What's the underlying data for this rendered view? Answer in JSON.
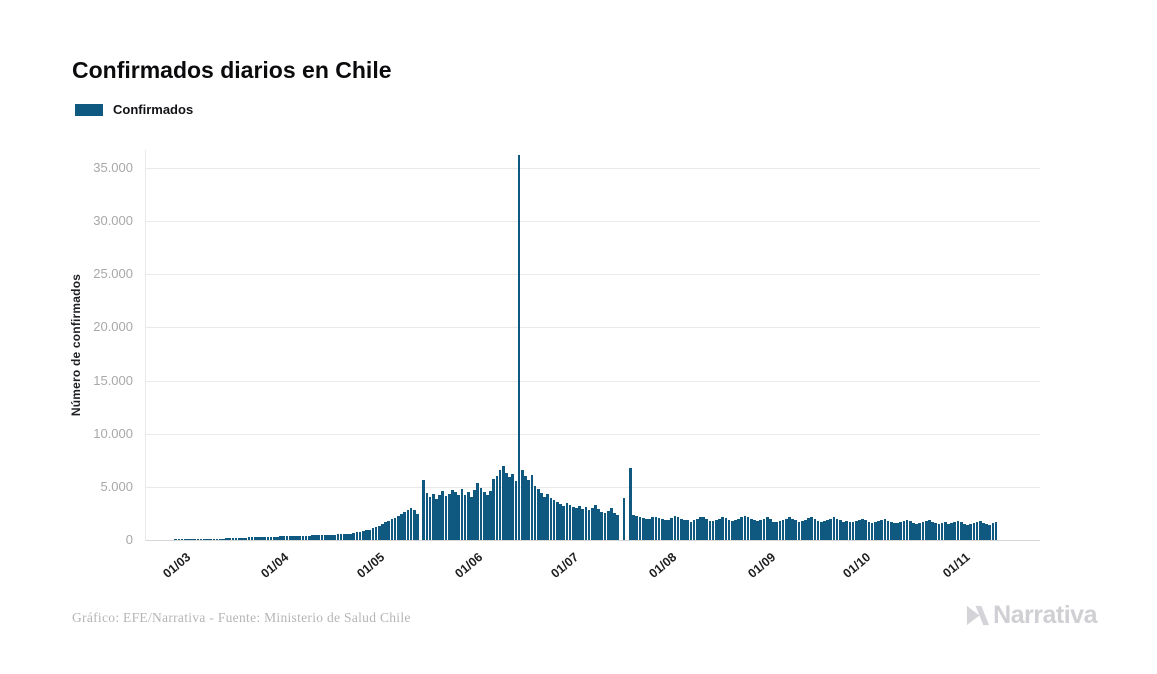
{
  "header": {
    "title": "Confirmados diarios en Chile"
  },
  "legend": {
    "position": "top-left",
    "items": [
      {
        "label": "Confirmados",
        "color": "#0f587f"
      }
    ]
  },
  "chart_data": {
    "type": "bar",
    "title": "Confirmados diarios en Chile",
    "xlabel": "",
    "ylabel": "Número de confirmados",
    "series_name": "Confirmados",
    "bar_color": "#0f587f",
    "grid": "horizontal-only",
    "ylim": [
      0,
      37000
    ],
    "y_ticks": [
      "0",
      "5.000",
      "10.000",
      "15.000",
      "20.000",
      "25.000",
      "30.000",
      "35.000"
    ],
    "y_tick_values": [
      0,
      5000,
      10000,
      15000,
      20000,
      25000,
      30000,
      35000
    ],
    "x_ticks": [
      {
        "label": "01/03",
        "day": 0
      },
      {
        "label": "01/04",
        "day": 31
      },
      {
        "label": "01/05",
        "day": 61
      },
      {
        "label": "01/06",
        "day": 92
      },
      {
        "label": "01/07",
        "day": 122
      },
      {
        "label": "01/08",
        "day": 153
      },
      {
        "label": "01/09",
        "day": 184
      },
      {
        "label": "01/10",
        "day": 214
      },
      {
        "label": "01/11",
        "day": 245
      }
    ],
    "x_start_label": "01/03",
    "values": [
      0,
      0,
      1,
      3,
      4,
      5,
      10,
      12,
      14,
      18,
      30,
      43,
      56,
      75,
      92,
      105,
      118,
      132,
      145,
      160,
      176,
      190,
      205,
      220,
      232,
      240,
      252,
      262,
      272,
      282,
      290,
      300,
      310,
      318,
      312,
      330,
      340,
      336,
      346,
      360,
      375,
      390,
      400,
      410,
      420,
      430,
      426,
      445,
      460,
      475,
      482,
      495,
      510,
      522,
      540,
      560,
      580,
      605,
      650,
      710,
      780,
      840,
      905,
      980,
      1100,
      1230,
      1350,
      1500,
      1650,
      1800,
      1950,
      2100,
      2260,
      2400,
      2600,
      2800,
      3000,
      2820,
      2420,
      0,
      5650,
      4420,
      4000,
      4320,
      3900,
      4220,
      4600,
      4120,
      4320,
      4700,
      4520,
      4220,
      4800,
      4220,
      4520,
      4000,
      4720,
      5320,
      4920,
      4520,
      4220,
      4620,
      5700,
      6000,
      6620,
      6920,
      6320,
      5920,
      6220,
      5520,
      36200,
      6620,
      6020,
      5620,
      6120,
      5120,
      4820,
      4420,
      4020,
      4320,
      3920,
      3720,
      3620,
      3420,
      3220,
      3520,
      3320,
      3120,
      3020,
      3220,
      2920,
      3120,
      2820,
      3020,
      3320,
      2920,
      2620,
      2520,
      2720,
      3020,
      2520,
      2320,
      0,
      3980,
      0,
      6810,
      2350,
      2250,
      2150,
      2080,
      1980,
      2020,
      2120,
      2140,
      2040,
      1960,
      1840,
      1920,
      2060,
      2220,
      2120,
      2020,
      1920,
      1860,
      1720,
      1920,
      2020,
      2160,
      2120,
      1960,
      1820,
      1760,
      1920,
      2020,
      2120,
      2060,
      1920,
      1820,
      1860,
      1960,
      2120,
      2220,
      2160,
      2020,
      1860,
      1820,
      1920,
      2020,
      2120,
      1960,
      1720,
      1660,
      1820,
      1920,
      2020,
      2120,
      1960,
      1860,
      1720,
      1760,
      1920,
      2060,
      2120,
      1960,
      1820,
      1720,
      1760,
      1860,
      1960,
      2120,
      2020,
      1860,
      1720,
      1760,
      1660,
      1720,
      1820,
      1920,
      2020,
      1860,
      1720,
      1620,
      1660,
      1760,
      1860,
      1960,
      1820,
      1720,
      1560,
      1620,
      1720,
      1820,
      1920,
      1760,
      1620,
      1520,
      1560,
      1660,
      1760,
      1860,
      1720,
      1620,
      1520,
      1560,
      1660,
      1520,
      1620,
      1720,
      1820,
      1660,
      1520,
      1420,
      1460,
      1560,
      1660,
      1760,
      1620,
      1520,
      1420,
      1560,
      1660
    ],
    "colors": {
      "grid_line": "#e9e9e9",
      "axis_line": "#d8d8d8",
      "y_tick_text": "#a8a8a8",
      "x_tick_text": "#1f1f22"
    }
  },
  "footer": {
    "credit": "Gráfico: EFE/Narrativa - Fuente: Ministerio de Salud Chile",
    "brand": "Narrativa",
    "brand_color": "#cfcfd4"
  }
}
